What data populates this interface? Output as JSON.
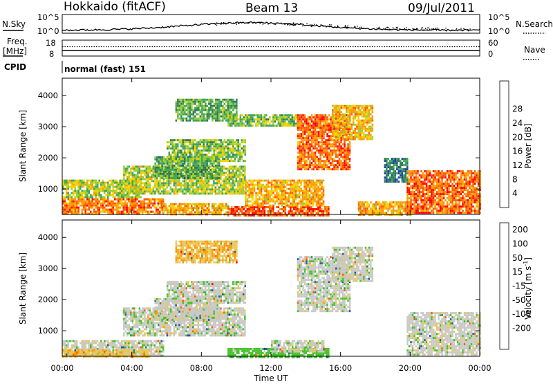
{
  "header": {
    "radar": "Hokkaido (fitACF)",
    "beam": "Beam 13",
    "date": "09/Jul/2011"
  },
  "strip_labels": {
    "nsky": "N.Sky",
    "nsearch": "N.Search",
    "freq_line1": "Freq.",
    "freq_line2": "[MHz]",
    "nave": "Nave",
    "cpid": "CPID",
    "noise_ticks_left": [
      "10^5",
      "10^0"
    ],
    "noise_ticks_right": [
      "10^5",
      "10^0"
    ],
    "freq_ticks": [
      "18",
      "8"
    ],
    "nave_ticks": [
      "60",
      "0"
    ],
    "program": "normal (fast) 151"
  },
  "colors": {
    "power_scale": [
      "#0000ff",
      "#1f3fa8",
      "#2f7a55",
      "#3fa55a",
      "#9acd32",
      "#f5d000",
      "#ff9900",
      "#ff5a00",
      "#ff0000"
    ],
    "velocity_scale": [
      "#1a2bc8",
      "#2a55a8",
      "#2f8a5a",
      "#44c22a",
      "#c8c8c8",
      "#e6c85a",
      "#ff9900",
      "#ff5a00",
      "#ff0000"
    ]
  },
  "chart_data": [
    {
      "type": "heatmap",
      "name": "power",
      "title": "",
      "xlabel": "Time UT",
      "ylabel": "Slant Range [km]",
      "x_ticks": [
        "00:00",
        "04:00",
        "08:00",
        "12:00",
        "16:00",
        "20:00",
        "00:00"
      ],
      "xlim_hours": [
        0,
        24
      ],
      "y_ticks": [
        "1000",
        "2000",
        "3000",
        "4000"
      ],
      "ylim": [
        180,
        4560
      ],
      "colorbar": {
        "label": "Power [dB]",
        "ticks": [
          "4",
          "8",
          "12",
          "16",
          "20",
          "24",
          "28"
        ],
        "range": [
          0,
          32
        ]
      },
      "regions": [
        {
          "t0": 0.0,
          "t1": 5.8,
          "r0": 180,
          "r1": 700,
          "value": 25
        },
        {
          "t0": 5.8,
          "t1": 9.5,
          "r0": 180,
          "r1": 550,
          "value": 22
        },
        {
          "t0": 9.5,
          "t1": 15.3,
          "r0": 180,
          "r1": 450,
          "value": 27
        },
        {
          "t0": 17.0,
          "t1": 20.0,
          "r0": 180,
          "r1": 600,
          "value": 22
        },
        {
          "t0": 19.8,
          "t1": 24.0,
          "r0": 250,
          "r1": 1600,
          "value": 26
        },
        {
          "t0": 0.0,
          "t1": 4.5,
          "r0": 700,
          "r1": 1300,
          "value": 17
        },
        {
          "t0": 3.5,
          "t1": 10.5,
          "r0": 850,
          "r1": 1750,
          "value": 17
        },
        {
          "t0": 10.5,
          "t1": 15.0,
          "r0": 450,
          "r1": 1300,
          "value": 22
        },
        {
          "t0": 5.3,
          "t1": 9.0,
          "r0": 1350,
          "r1": 2050,
          "value": 12
        },
        {
          "t0": 6.0,
          "t1": 10.5,
          "r0": 1900,
          "r1": 2600,
          "value": 15
        },
        {
          "t0": 6.5,
          "t1": 10.0,
          "r0": 3200,
          "r1": 3900,
          "value": 13
        },
        {
          "t0": 9.5,
          "t1": 13.5,
          "r0": 3000,
          "r1": 3400,
          "value": 15
        },
        {
          "t0": 13.5,
          "t1": 16.5,
          "r0": 1600,
          "r1": 3400,
          "value": 26
        },
        {
          "t0": 15.5,
          "t1": 17.8,
          "r0": 2600,
          "r1": 3700,
          "value": 21
        },
        {
          "t0": 18.5,
          "t1": 19.8,
          "r0": 1200,
          "r1": 2000,
          "value": 9
        }
      ]
    },
    {
      "type": "heatmap",
      "name": "velocity",
      "title": "",
      "xlabel": "Time UT",
      "ylabel": "Slant Range [km]",
      "x_ticks": [
        "00:00",
        "04:00",
        "08:00",
        "12:00",
        "16:00",
        "20:00",
        "00:00"
      ],
      "xlim_hours": [
        0,
        24
      ],
      "y_ticks": [
        "1000",
        "2000",
        "3000",
        "4000"
      ],
      "ylim": [
        180,
        4560
      ],
      "colorbar": {
        "label": "Velocity [m s-1]",
        "ticks": [
          "200",
          "100",
          "50",
          "15",
          "-15",
          "-50",
          "-100",
          "-200"
        ],
        "range": [
          -250,
          250
        ]
      },
      "regions": [
        {
          "t0": 0.0,
          "t1": 5.8,
          "r0": 180,
          "r1": 700,
          "value": 0
        },
        {
          "t0": 0.0,
          "t1": 5.0,
          "r0": 180,
          "r1": 400,
          "value": -40
        },
        {
          "t0": 9.5,
          "t1": 15.3,
          "r0": 180,
          "r1": 450,
          "value": 30
        },
        {
          "t0": 12.0,
          "t1": 15.0,
          "r0": 300,
          "r1": 700,
          "value": 0
        },
        {
          "t0": 19.8,
          "t1": 24.0,
          "r0": 250,
          "r1": 1600,
          "value": 0
        },
        {
          "t0": 3.5,
          "t1": 10.5,
          "r0": 850,
          "r1": 1750,
          "value": 0
        },
        {
          "t0": 5.3,
          "t1": 9.0,
          "r0": 1350,
          "r1": 2050,
          "value": 0
        },
        {
          "t0": 6.0,
          "t1": 10.5,
          "r0": 1900,
          "r1": 2600,
          "value": 0
        },
        {
          "t0": 6.5,
          "t1": 10.0,
          "r0": 3200,
          "r1": 3900,
          "value": -45
        },
        {
          "t0": 13.5,
          "t1": 16.5,
          "r0": 1600,
          "r1": 3400,
          "value": 0
        },
        {
          "t0": 15.5,
          "t1": 17.8,
          "r0": 2600,
          "r1": 3700,
          "value": 0
        }
      ]
    }
  ]
}
